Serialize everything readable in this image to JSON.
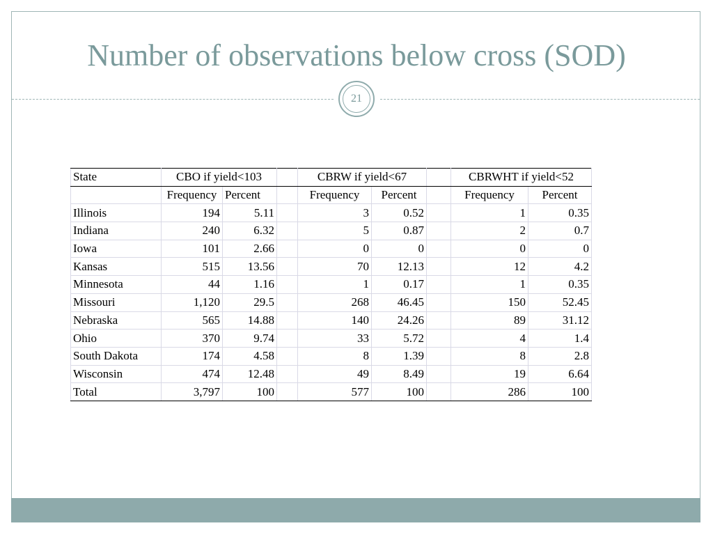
{
  "slide": {
    "title": "Number of observations below cross (SOD)",
    "page_number": "21"
  },
  "table": {
    "state_header": "State",
    "groups": [
      {
        "label": "CBO if yield<103"
      },
      {
        "label": "CBRW if yield<67"
      },
      {
        "label": "CBRWHT if yield<52"
      }
    ],
    "sub_headers": {
      "g1_freq": "Frequency",
      "g1_pct": "Percent",
      "g2_freq": "Frequency",
      "g2_pct": "Percent",
      "g3_freq": "Frequency",
      "g3_pct": "Percent"
    },
    "rows": [
      {
        "state": "Illinois",
        "f1": "194",
        "p1": "5.11",
        "f2": "3",
        "p2": "0.52",
        "f3": "1",
        "p3": "0.35"
      },
      {
        "state": "Indiana",
        "f1": "240",
        "p1": "6.32",
        "f2": "5",
        "p2": "0.87",
        "f3": "2",
        "p3": "0.7"
      },
      {
        "state": "Iowa",
        "f1": "101",
        "p1": "2.66",
        "f2": "0",
        "p2": "0",
        "f3": "0",
        "p3": "0"
      },
      {
        "state": "Kansas",
        "f1": "515",
        "p1": "13.56",
        "f2": "70",
        "p2": "12.13",
        "f3": "12",
        "p3": "4.2"
      },
      {
        "state": "Minnesota",
        "f1": "44",
        "p1": "1.16",
        "f2": "1",
        "p2": "0.17",
        "f3": "1",
        "p3": "0.35"
      },
      {
        "state": "Missouri",
        "f1": "1,120",
        "p1": "29.5",
        "f2": "268",
        "p2": "46.45",
        "f3": "150",
        "p3": "52.45"
      },
      {
        "state": "Nebraska",
        "f1": "565",
        "p1": "14.88",
        "f2": "140",
        "p2": "24.26",
        "f3": "89",
        "p3": "31.12"
      },
      {
        "state": "Ohio",
        "f1": "370",
        "p1": "9.74",
        "f2": "33",
        "p2": "5.72",
        "f3": "4",
        "p3": "1.4"
      },
      {
        "state": "South Dakota",
        "f1": "174",
        "p1": "4.58",
        "f2": "8",
        "p2": "1.39",
        "f3": "8",
        "p3": "2.8"
      },
      {
        "state": "Wisconsin",
        "f1": "474",
        "p1": "12.48",
        "f2": "49",
        "p2": "8.49",
        "f3": "19",
        "p3": "6.64"
      },
      {
        "state": "Total",
        "f1": "3,797",
        "p1": "100",
        "f2": "577",
        "p2": "100",
        "f3": "286",
        "p3": "100"
      }
    ]
  },
  "colors": {
    "accent": "#7a9a9b",
    "footer_bar": "#8eaaab",
    "border": "#9fb6b6"
  }
}
